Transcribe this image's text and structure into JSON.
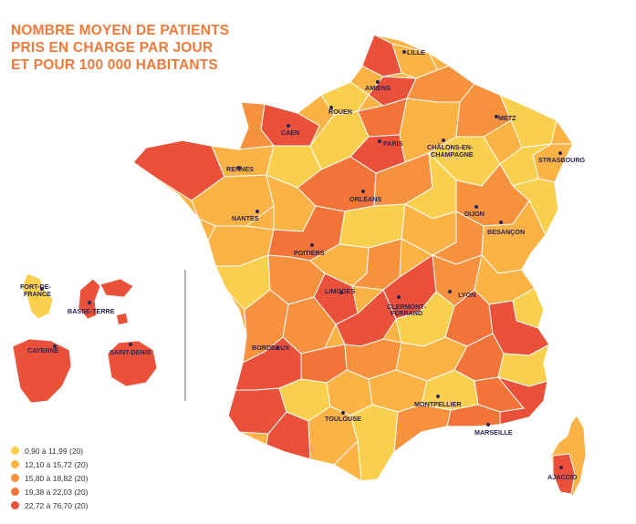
{
  "title": {
    "line1": "NOMBRE MOYEN DE PATIENTS",
    "line2": "PRIS EN CHARGE PAR JOUR",
    "line3": "ET POUR 100 000 HABITANTS"
  },
  "colors": {
    "c1": "#f9cf4e",
    "c2": "#fbb345",
    "c3": "#f6923e",
    "c4": "#f27439",
    "c5": "#e9513a",
    "ink": "#2b2456",
    "title": "#ef7a3c"
  },
  "legend": [
    {
      "label": "0,90 à 11,99 (20)",
      "color": "#f9cf4e"
    },
    {
      "label": "12,10 à 15,72 (20)",
      "color": "#fbb345"
    },
    {
      "label": "15,80 à 18,82 (20)",
      "color": "#f6923e"
    },
    {
      "label": "19,38 à 22,03 (20)",
      "color": "#f27439"
    },
    {
      "label": "22,72 à 76,70 (20)",
      "color": "#e9513a"
    }
  ],
  "cities": [
    {
      "label": "LILLE"
    },
    {
      "label": "AMIENS"
    },
    {
      "label": "ROUEN"
    },
    {
      "label": "CAEN"
    },
    {
      "label": "METZ"
    },
    {
      "label": "PARIS"
    },
    {
      "label": "CHÂLONS-EN-"
    },
    {
      "label": "CHAMPAGNE"
    },
    {
      "label": "STRASBOURG"
    },
    {
      "label": "RENNES"
    },
    {
      "label": "ORLÉANS"
    },
    {
      "label": "NANTES"
    },
    {
      "label": "DIJON"
    },
    {
      "label": "BESANÇON"
    },
    {
      "label": "POITIERS"
    },
    {
      "label": "LIMOGES"
    },
    {
      "label": "LYON"
    },
    {
      "label": "CLERMONT-"
    },
    {
      "label": "FERRAND"
    },
    {
      "label": "BORDEAUX"
    },
    {
      "label": "TOULOUSE"
    },
    {
      "label": "MONTPELLIER"
    },
    {
      "label": "MARSEILLE"
    },
    {
      "label": "AJACCIO"
    },
    {
      "label": "FORT-DE-"
    },
    {
      "label": "FRANCE"
    },
    {
      "label": "BASSE-TERRE"
    },
    {
      "label": "CAYENNE"
    },
    {
      "label": "SAINT-DENIS"
    }
  ]
}
